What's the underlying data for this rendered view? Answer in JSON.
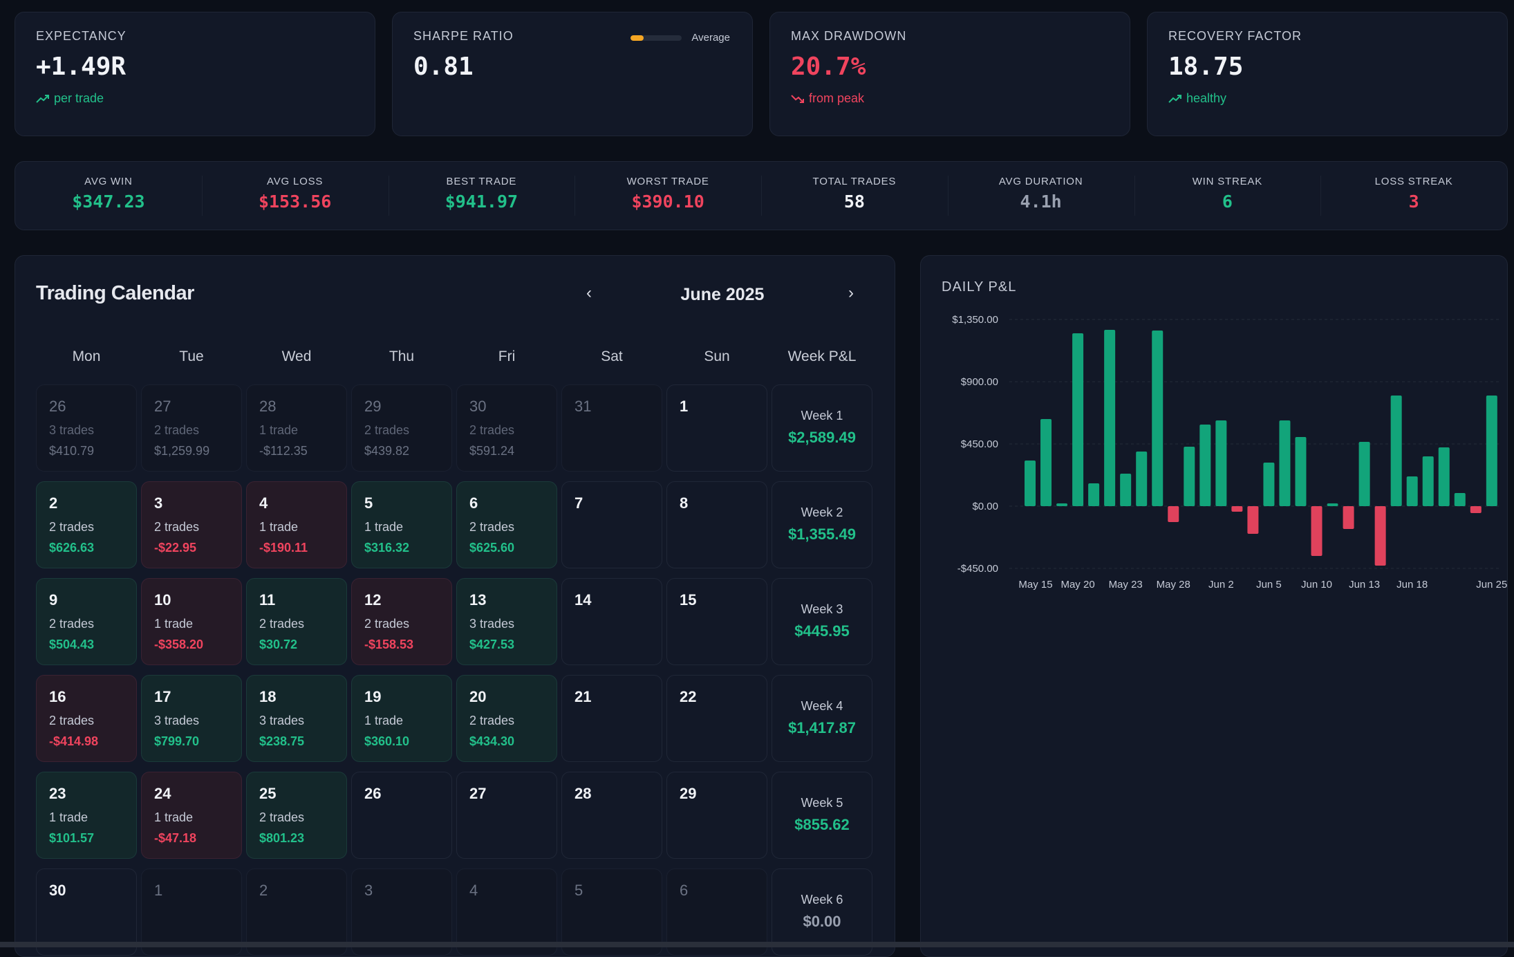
{
  "kpis": [
    {
      "label": "EXPECTANCY",
      "value": "+1.49R",
      "sub": "per trade",
      "trend": "up",
      "color": "white"
    },
    {
      "label": "SHARPE RATIO",
      "value": "0.81",
      "gauge_label": "Average",
      "gauge_level": 0.25,
      "color": "white"
    },
    {
      "label": "MAX DRAWDOWN",
      "value": "20.7%",
      "sub": "from peak",
      "trend": "down",
      "color": "red"
    },
    {
      "label": "RECOVERY FACTOR",
      "value": "18.75",
      "sub": "healthy",
      "trend": "up",
      "color": "white"
    }
  ],
  "stats": [
    {
      "label": "AVG WIN",
      "value": "$347.23",
      "color": "green"
    },
    {
      "label": "AVG LOSS",
      "value": "$153.56",
      "color": "red"
    },
    {
      "label": "BEST TRADE",
      "value": "$941.97",
      "color": "green"
    },
    {
      "label": "WORST TRADE",
      "value": "$390.10",
      "color": "red"
    },
    {
      "label": "TOTAL TRADES",
      "value": "58",
      "color": "white"
    },
    {
      "label": "AVG DURATION",
      "value": "4.1h",
      "color": "grey"
    },
    {
      "label": "WIN STREAK",
      "value": "6",
      "color": "green"
    },
    {
      "label": "LOSS STREAK",
      "value": "3",
      "color": "red"
    }
  ],
  "calendar": {
    "title": "Trading Calendar",
    "month": "June 2025",
    "prev_icon": "‹",
    "next_icon": "›",
    "headers": [
      "Mon",
      "Tue",
      "Wed",
      "Thu",
      "Fri",
      "Sat",
      "Sun",
      "Week P&L"
    ],
    "weeks": [
      {
        "label": "Week 1",
        "value": "$2,589.49",
        "days": [
          {
            "d": "26",
            "t": "3 trades",
            "p": "$410.79",
            "s": "dim"
          },
          {
            "d": "27",
            "t": "2 trades",
            "p": "$1,259.99",
            "s": "dim"
          },
          {
            "d": "28",
            "t": "1 trade",
            "p": "-$112.35",
            "s": "dim"
          },
          {
            "d": "29",
            "t": "2 trades",
            "p": "$439.82",
            "s": "dim"
          },
          {
            "d": "30",
            "t": "2 trades",
            "p": "$591.24",
            "s": "dim"
          },
          {
            "d": "31",
            "t": "",
            "p": "",
            "s": "dim"
          },
          {
            "d": "1",
            "t": "",
            "p": "",
            "s": ""
          }
        ]
      },
      {
        "label": "Week 2",
        "value": "$1,355.49",
        "days": [
          {
            "d": "2",
            "t": "2 trades",
            "p": "$626.63",
            "s": "pos"
          },
          {
            "d": "3",
            "t": "2 trades",
            "p": "-$22.95",
            "s": "neg"
          },
          {
            "d": "4",
            "t": "1 trade",
            "p": "-$190.11",
            "s": "neg"
          },
          {
            "d": "5",
            "t": "1 trade",
            "p": "$316.32",
            "s": "pos"
          },
          {
            "d": "6",
            "t": "2 trades",
            "p": "$625.60",
            "s": "pos"
          },
          {
            "d": "7",
            "t": "",
            "p": "",
            "s": ""
          },
          {
            "d": "8",
            "t": "",
            "p": "",
            "s": ""
          }
        ]
      },
      {
        "label": "Week 3",
        "value": "$445.95",
        "days": [
          {
            "d": "9",
            "t": "2 trades",
            "p": "$504.43",
            "s": "pos"
          },
          {
            "d": "10",
            "t": "1 trade",
            "p": "-$358.20",
            "s": "neg"
          },
          {
            "d": "11",
            "t": "2 trades",
            "p": "$30.72",
            "s": "pos"
          },
          {
            "d": "12",
            "t": "2 trades",
            "p": "-$158.53",
            "s": "neg"
          },
          {
            "d": "13",
            "t": "3 trades",
            "p": "$427.53",
            "s": "pos"
          },
          {
            "d": "14",
            "t": "",
            "p": "",
            "s": ""
          },
          {
            "d": "15",
            "t": "",
            "p": "",
            "s": ""
          }
        ]
      },
      {
        "label": "Week 4",
        "value": "$1,417.87",
        "days": [
          {
            "d": "16",
            "t": "2 trades",
            "p": "-$414.98",
            "s": "neg"
          },
          {
            "d": "17",
            "t": "3 trades",
            "p": "$799.70",
            "s": "pos"
          },
          {
            "d": "18",
            "t": "3 trades",
            "p": "$238.75",
            "s": "pos"
          },
          {
            "d": "19",
            "t": "1 trade",
            "p": "$360.10",
            "s": "pos"
          },
          {
            "d": "20",
            "t": "2 trades",
            "p": "$434.30",
            "s": "pos"
          },
          {
            "d": "21",
            "t": "",
            "p": "",
            "s": ""
          },
          {
            "d": "22",
            "t": "",
            "p": "",
            "s": ""
          }
        ]
      },
      {
        "label": "Week 5",
        "value": "$855.62",
        "days": [
          {
            "d": "23",
            "t": "1 trade",
            "p": "$101.57",
            "s": "pos"
          },
          {
            "d": "24",
            "t": "1 trade",
            "p": "-$47.18",
            "s": "neg"
          },
          {
            "d": "25",
            "t": "2 trades",
            "p": "$801.23",
            "s": "pos"
          },
          {
            "d": "26",
            "t": "",
            "p": "",
            "s": ""
          },
          {
            "d": "27",
            "t": "",
            "p": "",
            "s": ""
          },
          {
            "d": "28",
            "t": "",
            "p": "",
            "s": ""
          },
          {
            "d": "29",
            "t": "",
            "p": "",
            "s": ""
          }
        ]
      },
      {
        "label": "Week 6",
        "value": "$0.00",
        "days": [
          {
            "d": "30",
            "t": "",
            "p": "",
            "s": ""
          },
          {
            "d": "1",
            "t": "",
            "p": "",
            "s": "dim"
          },
          {
            "d": "2",
            "t": "",
            "p": "",
            "s": "dim"
          },
          {
            "d": "3",
            "t": "",
            "p": "",
            "s": "dim"
          },
          {
            "d": "4",
            "t": "",
            "p": "",
            "s": "dim"
          },
          {
            "d": "5",
            "t": "",
            "p": "",
            "s": "dim"
          },
          {
            "d": "6",
            "t": "",
            "p": "",
            "s": "dim"
          }
        ]
      }
    ]
  },
  "chart_title": "DAILY P&L",
  "chart_data": {
    "type": "bar",
    "title": "DAILY P&L",
    "ylim": [
      -450,
      1350
    ],
    "yticks": [
      {
        "v": 1350,
        "l": "$1,350.00"
      },
      {
        "v": 900,
        "l": "$900.00"
      },
      {
        "v": 450,
        "l": "$450.00"
      },
      {
        "v": 0,
        "l": "$0.00"
      },
      {
        "v": -450,
        "l": "-$450.00"
      }
    ],
    "xticks": [
      {
        "i": 0,
        "l": "May 15"
      },
      {
        "i": 3,
        "l": "May 20"
      },
      {
        "i": 6,
        "l": "May 23"
      },
      {
        "i": 9,
        "l": "May 28"
      },
      {
        "i": 12,
        "l": "Jun 2"
      },
      {
        "i": 15,
        "l": "Jun 5"
      },
      {
        "i": 18,
        "l": "Jun 10"
      },
      {
        "i": 21,
        "l": "Jun 13"
      },
      {
        "i": 24,
        "l": "Jun 18"
      },
      {
        "i": 29,
        "l": "Jun 25"
      }
    ],
    "values": [
      330,
      630,
      20,
      1250,
      165,
      1275,
      235,
      395,
      1270,
      -115,
      430,
      590,
      620,
      -40,
      -200,
      315,
      620,
      500,
      -360,
      20,
      -165,
      465,
      -430,
      800,
      215,
      360,
      425,
      95,
      -50,
      800
    ],
    "grid": true,
    "colors": {
      "positive": "#12a47a",
      "negative": "#e0425c"
    }
  }
}
